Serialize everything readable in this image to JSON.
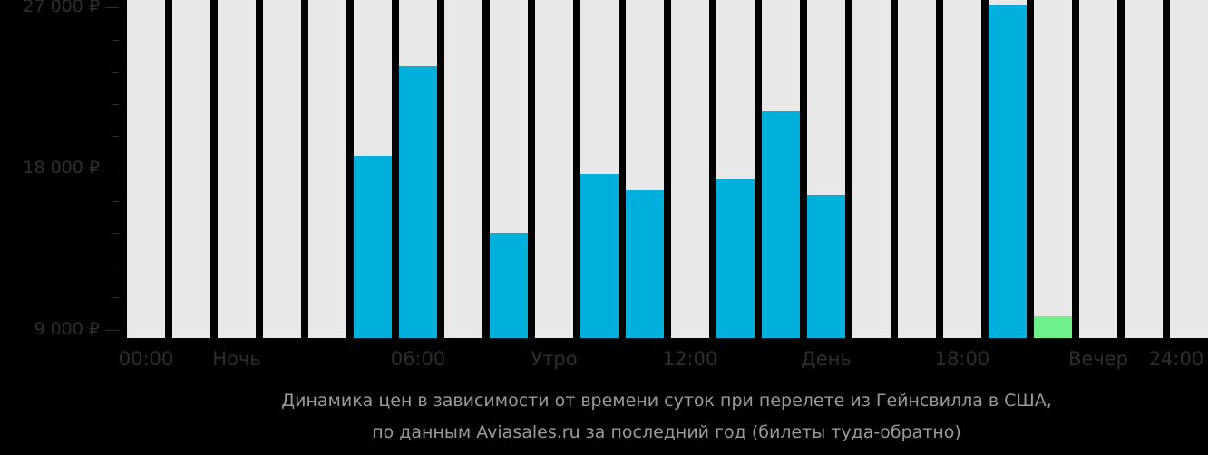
{
  "chart_data": {
    "type": "bar",
    "title": "Динамика цен в зависимости от времени суток при перелете из Гейнсвилла в США,",
    "subtitle": "по данным Aviasales.ru за последний год (билеты туда-обратно)",
    "xlabel": "",
    "ylabel": "",
    "ylim": [
      8550,
      27450
    ],
    "grid": false,
    "legend": null,
    "y_ticks": [
      {
        "value": 27000,
        "label": "27 000 ₽"
      },
      {
        "value": 18000,
        "label": "18 000 ₽"
      },
      {
        "value": 9000,
        "label": "9 000 ₽"
      }
    ],
    "x_tick_labels": [
      {
        "label": "00:00",
        "slot": 0
      },
      {
        "label": "Ночь",
        "slot": 2
      },
      {
        "label": "06:00",
        "slot": 6
      },
      {
        "label": "Утро",
        "slot": 9
      },
      {
        "label": "12:00",
        "slot": 12
      },
      {
        "label": "День",
        "slot": 15
      },
      {
        "label": "18:00",
        "slot": 18
      },
      {
        "label": "Вечер",
        "slot": 21
      },
      {
        "label": "24:00",
        "slot": 24
      }
    ],
    "categories": [
      "00",
      "01",
      "02",
      "03",
      "04",
      "05",
      "06",
      "07",
      "08",
      "09",
      "10",
      "11",
      "12",
      "13",
      "14",
      "15",
      "16",
      "17",
      "18",
      "19",
      "20",
      "21",
      "22",
      "23"
    ],
    "values": [
      null,
      null,
      null,
      null,
      null,
      18700,
      23700,
      null,
      14400,
      null,
      17700,
      16800,
      null,
      17450,
      21200,
      16550,
      null,
      null,
      null,
      27100,
      9760,
      null,
      null,
      null
    ],
    "bar_colors": {
      "default": "#00b0dc",
      "min": "#6ef08a",
      "empty_slot": "#e8e8e8"
    },
    "min_bar_index": 20
  },
  "axis": {
    "y_labels": [
      "27 000 ₽",
      "18 000 ₽",
      "9 000 ₽"
    ],
    "x_labels": [
      "00:00",
      "Ночь",
      "06:00",
      "Утро",
      "12:00",
      "День",
      "18:00",
      "Вечер",
      "24:00"
    ]
  },
  "caption": {
    "line1": "Динамика цен в зависимости от времени суток при перелете из Гейнсвилла в США,",
    "line2": "по данным Aviasales.ru за последний год (билеты туда-обратно)"
  }
}
